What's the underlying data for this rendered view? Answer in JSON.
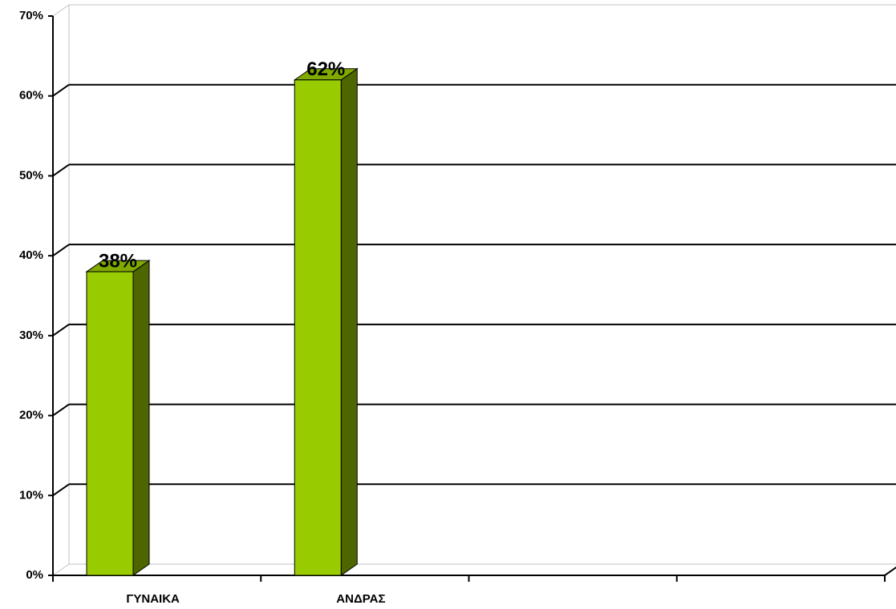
{
  "chart_data": {
    "type": "bar",
    "categories": [
      "ΓΥΝΑΙΚΑ",
      "ΑΝΔΡΑΣ",
      null,
      null
    ],
    "values": [
      38,
      62,
      null,
      null
    ],
    "value_labels": [
      "38%",
      "62%",
      null,
      null
    ],
    "color": "#99cc00",
    "ylim": [
      0,
      70
    ],
    "yticks": [
      {
        "value": 0,
        "label": "0%"
      },
      {
        "value": 10,
        "label": "10%"
      },
      {
        "value": 20,
        "label": "20%"
      },
      {
        "value": 30,
        "label": "30%"
      },
      {
        "value": 40,
        "label": "40%"
      },
      {
        "value": 50,
        "label": "50%"
      },
      {
        "value": 60,
        "label": "60%"
      },
      {
        "value": 70,
        "label": "70%"
      }
    ],
    "grid": true
  }
}
